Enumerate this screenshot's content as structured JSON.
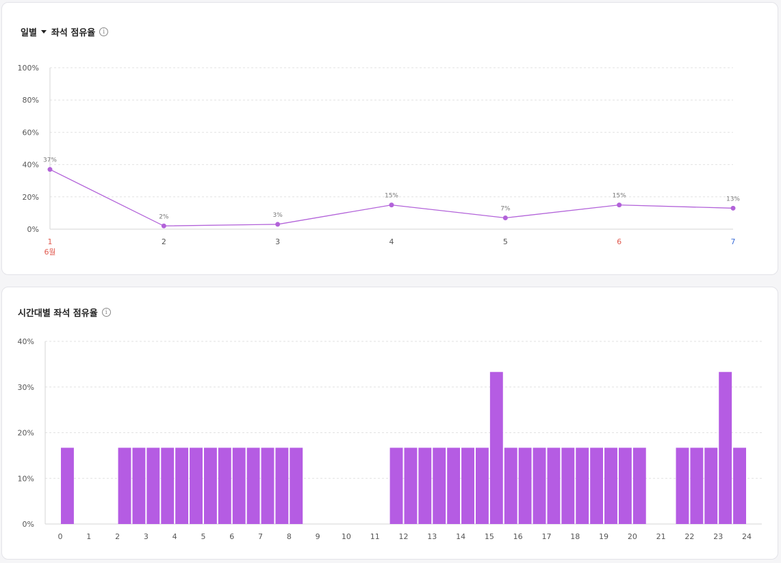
{
  "daily_card": {
    "period_label": "일별",
    "title": "좌석 점유율",
    "info_symbol": "i"
  },
  "hourly_card": {
    "title": "시간대별 좌석 점유율",
    "info_symbol": "i"
  },
  "colors": {
    "accent": "#b55ce3",
    "line": "#b262d9",
    "grid": "#e2e2e2",
    "axis_text": "#555555",
    "point_label": "#777777",
    "sunday": "#e05a4f",
    "saturday": "#3d6fd9"
  },
  "chart_data": [
    {
      "type": "line",
      "title": "좌석 점유율",
      "x": [
        "1",
        "2",
        "3",
        "4",
        "5",
        "6",
        "7"
      ],
      "x_colors": [
        "sunday",
        "",
        "",
        "",
        "",
        "sunday",
        "saturday"
      ],
      "month_label": "6월",
      "values": [
        37,
        2,
        3,
        15,
        7,
        15,
        13
      ],
      "data_labels": [
        "37%",
        "2%",
        "3%",
        "15%",
        "7%",
        "15%",
        "13%"
      ],
      "yticks": [
        "0%",
        "20%",
        "40%",
        "60%",
        "80%",
        "100%"
      ],
      "ylim": [
        0,
        100
      ],
      "grid": true
    },
    {
      "type": "bar",
      "title": "시간대별 좌석 점유율",
      "xticks": [
        "0",
        "1",
        "2",
        "3",
        "4",
        "5",
        "6",
        "7",
        "8",
        "9",
        "10",
        "11",
        "12",
        "13",
        "14",
        "15",
        "16",
        "17",
        "18",
        "19",
        "20",
        "21",
        "22",
        "23",
        "24"
      ],
      "bin_starts": [
        0,
        0.5,
        1,
        1.5,
        2,
        2.5,
        3,
        3.5,
        4,
        4.5,
        5,
        5.5,
        6,
        6.5,
        7,
        7.5,
        8,
        8.5,
        9,
        9.5,
        10,
        10.5,
        11,
        11.5,
        12,
        12.5,
        13,
        13.5,
        14,
        14.5,
        15,
        15.5,
        16,
        16.5,
        17,
        17.5,
        18,
        18.5,
        19,
        19.5,
        20,
        20.5,
        21,
        21.5,
        22,
        22.5,
        23,
        23.5
      ],
      "values": [
        16.7,
        0,
        0,
        0,
        16.7,
        16.7,
        16.7,
        16.7,
        16.7,
        16.7,
        16.7,
        16.7,
        16.7,
        16.7,
        16.7,
        16.7,
        16.7,
        0,
        0,
        0,
        0,
        0,
        0,
        16.7,
        16.7,
        16.7,
        16.7,
        16.7,
        16.7,
        16.7,
        33.3,
        16.7,
        16.7,
        16.7,
        16.7,
        16.7,
        16.7,
        16.7,
        16.7,
        16.7,
        16.7,
        0,
        0,
        16.7,
        16.7,
        16.7,
        33.3,
        16.7
      ],
      "yticks": [
        "0%",
        "10%",
        "20%",
        "30%",
        "40%"
      ],
      "ylim": [
        0,
        40
      ],
      "grid": true
    }
  ]
}
